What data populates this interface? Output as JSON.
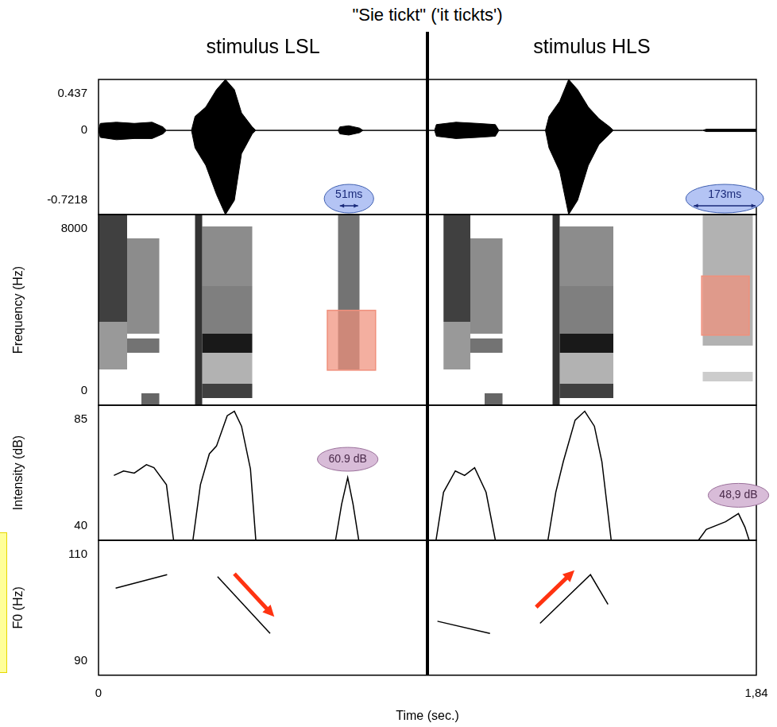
{
  "title": "\"Sie tickt\" ('it tickts')",
  "stimuli": [
    "stimulus LSL",
    "stimulus HLS"
  ],
  "divider": 0.92,
  "chart_data": [
    {
      "type": "waveform",
      "color": "#000000",
      "grid": false,
      "tick_labels": "y",
      "xlim": [
        0,
        1.84
      ],
      "ylim": [
        -0.7218,
        0.437
      ],
      "yticks": [
        -0.7218,
        0,
        0.437
      ],
      "x": [
        0,
        0.005,
        0.05,
        0.1,
        0.15,
        0.18,
        0.19,
        0.26,
        0.27,
        0.3,
        0.33,
        0.355,
        0.38,
        0.4,
        0.43,
        0.44,
        0.67,
        0.675,
        0.7,
        0.73,
        0.74,
        0.94,
        0.945,
        1.0,
        1.06,
        1.11,
        1.12,
        1.25,
        1.26,
        1.29,
        1.315,
        1.34,
        1.37,
        1.4,
        1.43,
        1.44,
        1.69,
        1.7,
        1.84
      ],
      "upper": [
        0,
        0.06,
        0.07,
        0.06,
        0.07,
        0.03,
        0,
        0,
        0.12,
        0.2,
        0.35,
        0.437,
        0.35,
        0.15,
        0.03,
        0,
        0,
        0.03,
        0.04,
        0.02,
        0,
        0,
        0.05,
        0.07,
        0.06,
        0.05,
        0,
        0,
        0.12,
        0.25,
        0.437,
        0.35,
        0.2,
        0.1,
        0.03,
        0,
        0,
        0.01,
        0.01
      ],
      "lower": [
        0,
        -0.06,
        -0.08,
        -0.07,
        -0.07,
        -0.03,
        0,
        0,
        -0.15,
        -0.3,
        -0.55,
        -0.7218,
        -0.6,
        -0.2,
        -0.03,
        0,
        0,
        -0.03,
        -0.04,
        -0.02,
        0,
        0,
        -0.05,
        -0.07,
        -0.06,
        -0.05,
        0,
        0,
        -0.15,
        -0.35,
        -0.7218,
        -0.6,
        -0.3,
        -0.12,
        -0.03,
        0,
        0,
        -0.01,
        -0.01
      ],
      "annotations": [
        {
          "text": "51ms",
          "x": [
            0.675,
            0.726
          ]
        },
        {
          "text": "173ms",
          "x": [
            1.665,
            1.838
          ]
        }
      ]
    },
    {
      "type": "spectrogram",
      "ylabel": "Frequency (Hz)",
      "grid": false,
      "tick_labels": "y",
      "xlim": [
        0,
        1.84
      ],
      "ylim": [
        0,
        8000
      ],
      "yticks": [
        0,
        8000
      ],
      "cells": [
        {
          "x": [
            0,
            0.08
          ],
          "y": [
            3500,
            8000
          ],
          "level": 0.75
        },
        {
          "x": [
            0,
            0.08
          ],
          "y": [
            1500,
            3500
          ],
          "level": 0.4
        },
        {
          "x": [
            0.08,
            0.17
          ],
          "y": [
            3000,
            7000
          ],
          "level": 0.45
        },
        {
          "x": [
            0.08,
            0.17
          ],
          "y": [
            2200,
            2800
          ],
          "level": 0.55
        },
        {
          "x": [
            0.12,
            0.17
          ],
          "y": [
            0,
            500
          ],
          "level": 0.6
        },
        {
          "x": [
            0.27,
            0.29
          ],
          "y": [
            0,
            8000
          ],
          "level": 0.8
        },
        {
          "x": [
            0.29,
            0.43
          ],
          "y": [
            5000,
            7500
          ],
          "level": 0.45
        },
        {
          "x": [
            0.29,
            0.43
          ],
          "y": [
            3000,
            5000
          ],
          "level": 0.5
        },
        {
          "x": [
            0.29,
            0.43
          ],
          "y": [
            2200,
            3000
          ],
          "level": 0.9
        },
        {
          "x": [
            0.29,
            0.43
          ],
          "y": [
            900,
            2200
          ],
          "level": 0.3
        },
        {
          "x": [
            0.29,
            0.43
          ],
          "y": [
            300,
            900
          ],
          "level": 0.75
        },
        {
          "x": [
            0.67,
            0.73
          ],
          "y": [
            1500,
            8000
          ],
          "level": 0.55
        },
        {
          "x": [
            0.965,
            1.04
          ],
          "y": [
            3500,
            8000
          ],
          "level": 0.75
        },
        {
          "x": [
            0.965,
            1.04
          ],
          "y": [
            1500,
            3500
          ],
          "level": 0.4
        },
        {
          "x": [
            1.04,
            1.13
          ],
          "y": [
            3000,
            7000
          ],
          "level": 0.45
        },
        {
          "x": [
            1.04,
            1.13
          ],
          "y": [
            2200,
            2800
          ],
          "level": 0.55
        },
        {
          "x": [
            1.08,
            1.13
          ],
          "y": [
            0,
            500
          ],
          "level": 0.6
        },
        {
          "x": [
            1.27,
            1.29
          ],
          "y": [
            0,
            8000
          ],
          "level": 0.8
        },
        {
          "x": [
            1.29,
            1.44
          ],
          "y": [
            5000,
            7500
          ],
          "level": 0.45
        },
        {
          "x": [
            1.29,
            1.44
          ],
          "y": [
            3000,
            5000
          ],
          "level": 0.5
        },
        {
          "x": [
            1.29,
            1.44
          ],
          "y": [
            2200,
            3000
          ],
          "level": 0.9
        },
        {
          "x": [
            1.29,
            1.44
          ],
          "y": [
            900,
            2200
          ],
          "level": 0.3
        },
        {
          "x": [
            1.29,
            1.44
          ],
          "y": [
            300,
            900
          ],
          "level": 0.75
        },
        {
          "x": [
            1.69,
            1.83
          ],
          "y": [
            2500,
            8000
          ],
          "level": 0.3
        },
        {
          "x": [
            1.69,
            1.83
          ],
          "y": [
            1000,
            1400
          ],
          "level": 0.2
        }
      ],
      "highlights": [
        {
          "x": [
            0.64,
            0.775
          ],
          "y": [
            1470,
            3980
          ],
          "color": "#f0907c"
        },
        {
          "x": [
            1.687,
            1.82
          ],
          "y": [
            2940,
            5420
          ],
          "color": "#f0907c"
        }
      ]
    },
    {
      "type": "line",
      "ylabel": "Intensity (dB)",
      "color": "#000000",
      "grid": false,
      "tick_labels": "y",
      "xlim": [
        0,
        1.84
      ],
      "ylim": [
        40,
        85
      ],
      "yticks": [
        40,
        85
      ],
      "x": [
        0.043,
        0.07,
        0.1,
        0.134,
        0.155,
        0.19,
        0.21,
        0.237,
        0.264,
        0.285,
        0.31,
        0.33,
        0.36,
        0.38,
        0.4,
        0.425,
        0.44,
        0.55,
        0.663,
        0.68,
        0.697,
        0.712,
        0.728,
        0.83,
        0.944,
        0.965,
        0.998,
        1.024,
        1.052,
        1.084,
        1.11,
        1.18,
        1.257,
        1.279,
        1.3,
        1.333,
        1.36,
        1.387,
        1.408,
        1.434,
        1.55,
        1.678,
        1.7,
        1.754,
        1.79,
        1.808,
        1.82
      ],
      "values": [
        61.6,
        63.1,
        62.4,
        65.2,
        64.2,
        58.5,
        40,
        null,
        40,
        58.5,
        68.8,
        71.4,
        81.5,
        83,
        78,
        63.7,
        40,
        null,
        40,
        52,
        60.9,
        52,
        40,
        null,
        40,
        56,
        63.1,
        61.6,
        64.2,
        56,
        40,
        null,
        40,
        56,
        66.2,
        80,
        83,
        78,
        66.2,
        40,
        null,
        40,
        43.6,
        46.2,
        48.9,
        44.4,
        40
      ],
      "annotations": [
        {
          "text": "60.9 dB",
          "x": 0.697,
          "value": 60.9
        },
        {
          "text": "48,9 dB",
          "x": 1.79,
          "value": 48.9
        }
      ]
    },
    {
      "type": "line",
      "ylabel": "F0 (Hz)",
      "xlabel": "Time (sec.)",
      "grid": false,
      "tick_labels": true,
      "xlim": [
        0,
        1.84
      ],
      "xticks": [
        0,
        {
          "value": 1.84,
          "label": "1,84"
        }
      ],
      "ylim": [
        90,
        110
      ],
      "yticks": [
        90,
        110
      ],
      "series": [
        {
          "color": "#000000",
          "x": [
            0.048,
            0.192
          ],
          "values": [
            102.9,
            104.9
          ]
        },
        {
          "color": "#000000",
          "x": [
            0.333,
            0.48
          ],
          "values": [
            104.6,
            96.2
          ]
        },
        {
          "color": "#000000",
          "x": [
            0.948,
            1.095
          ],
          "values": [
            98.0,
            96.2
          ]
        },
        {
          "color": "#000000",
          "x": [
            1.235,
            1.376,
            1.425
          ],
          "values": [
            97.7,
            104.9,
            100.5
          ]
        }
      ]
    }
  ]
}
